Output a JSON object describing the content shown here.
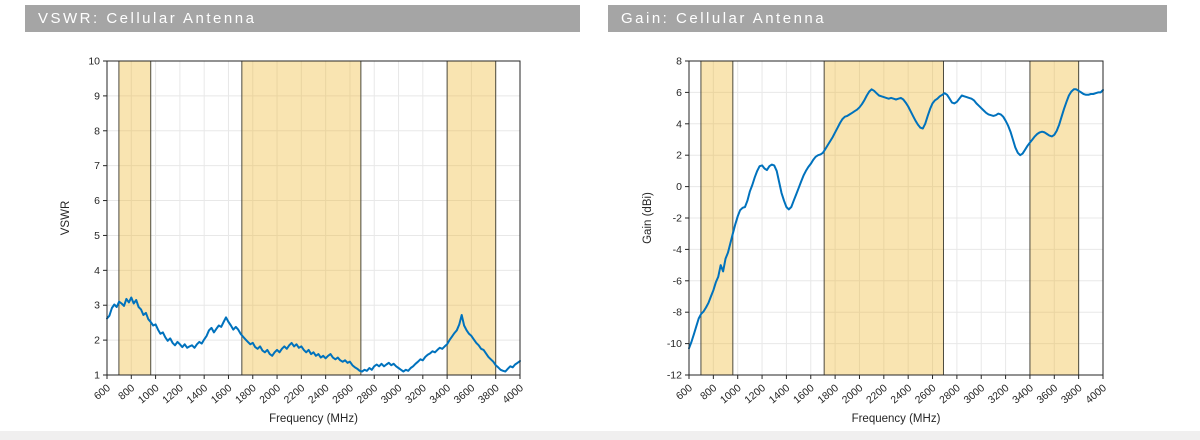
{
  "page": {
    "background": "#FFFFFF",
    "title_bar_color": "#A5A5A5",
    "title_text_color": "#FFFFFF",
    "bottom_strip_color": "#F0EFEF"
  },
  "chart_data": [
    {
      "type": "line",
      "title": "VSWR: Cellular Antenna",
      "xlabel": "Frequency (MHz)",
      "ylabel": "VSWR",
      "xlim": [
        600,
        4000
      ],
      "ylim": [
        1,
        10
      ],
      "xticks": [
        600,
        800,
        1000,
        1200,
        1400,
        1600,
        1800,
        2000,
        2200,
        2400,
        2600,
        2800,
        3000,
        3200,
        3400,
        3600,
        3800,
        4000
      ],
      "yticks": [
        1,
        2,
        3,
        4,
        5,
        6,
        7,
        8,
        9,
        10
      ],
      "grid": true,
      "legend": "none",
      "bands_mhz": [
        [
          698,
          960
        ],
        [
          1710,
          2690
        ],
        [
          3400,
          3800
        ]
      ],
      "x_start_mhz": 600,
      "x_step_mhz": 20,
      "x_end_mhz": 4000,
      "values": [
        2.62,
        2.7,
        2.92,
        3.02,
        2.95,
        3.1,
        3.05,
        2.98,
        3.18,
        3.08,
        3.22,
        3.05,
        3.15,
        2.95,
        2.88,
        2.72,
        2.78,
        2.6,
        2.52,
        2.42,
        2.45,
        2.3,
        2.18,
        2.22,
        2.08,
        1.98,
        2.05,
        1.92,
        1.85,
        1.95,
        1.88,
        1.8,
        1.88,
        1.78,
        1.82,
        1.85,
        1.78,
        1.88,
        1.95,
        1.9,
        2.02,
        2.12,
        2.28,
        2.35,
        2.22,
        2.32,
        2.42,
        2.38,
        2.52,
        2.65,
        2.52,
        2.42,
        2.3,
        2.38,
        2.3,
        2.18,
        2.1,
        2.02,
        1.95,
        1.88,
        1.92,
        1.8,
        1.75,
        1.82,
        1.7,
        1.65,
        1.72,
        1.6,
        1.55,
        1.65,
        1.72,
        1.65,
        1.75,
        1.82,
        1.75,
        1.85,
        1.92,
        1.82,
        1.88,
        1.78,
        1.82,
        1.72,
        1.65,
        1.72,
        1.6,
        1.65,
        1.55,
        1.6,
        1.5,
        1.55,
        1.48,
        1.55,
        1.6,
        1.5,
        1.45,
        1.5,
        1.42,
        1.38,
        1.42,
        1.35,
        1.38,
        1.28,
        1.22,
        1.18,
        1.12,
        1.1,
        1.15,
        1.12,
        1.2,
        1.15,
        1.25,
        1.3,
        1.25,
        1.32,
        1.25,
        1.3,
        1.35,
        1.28,
        1.32,
        1.25,
        1.2,
        1.15,
        1.1,
        1.15,
        1.12,
        1.2,
        1.25,
        1.32,
        1.38,
        1.45,
        1.42,
        1.52,
        1.58,
        1.62,
        1.68,
        1.65,
        1.72,
        1.78,
        1.75,
        1.82,
        1.88,
        2.0,
        2.1,
        2.2,
        2.28,
        2.45,
        2.72,
        2.42,
        2.28,
        2.18,
        2.12,
        2.02,
        1.92,
        1.85,
        1.75,
        1.72,
        1.62,
        1.52,
        1.45,
        1.38,
        1.28,
        1.22,
        1.15,
        1.12,
        1.1,
        1.18,
        1.25,
        1.22,
        1.3,
        1.35,
        1.4
      ],
      "colors": {
        "line": "#0072BD",
        "band_fill": "#EDB120",
        "band_fill_opacity": 0.35,
        "band_edge": "#4C4A3F",
        "grid": "#E8E8E8",
        "axis": "#262626",
        "text": "#262626"
      }
    },
    {
      "type": "line",
      "title": "Gain: Cellular Antenna",
      "xlabel": "Frequency (MHz)",
      "ylabel": "Gain (dBi)",
      "xlim": [
        600,
        4000
      ],
      "ylim": [
        -12,
        8
      ],
      "xticks": [
        600,
        800,
        1000,
        1200,
        1400,
        1600,
        1800,
        2000,
        2200,
        2400,
        2600,
        2800,
        3000,
        3200,
        3400,
        3600,
        3800,
        4000
      ],
      "yticks": [
        -12,
        -10,
        -8,
        -6,
        -4,
        -2,
        0,
        2,
        4,
        6,
        8
      ],
      "grid": true,
      "legend": "none",
      "bands_mhz": [
        [
          698,
          960
        ],
        [
          1710,
          2690
        ],
        [
          3400,
          3800
        ]
      ],
      "x_start_mhz": 600,
      "x_step_mhz": 20,
      "x_end_mhz": 4000,
      "values": [
        -10.3,
        -9.9,
        -9.4,
        -8.9,
        -8.4,
        -8.1,
        -7.95,
        -7.7,
        -7.4,
        -7.0,
        -6.6,
        -6.1,
        -5.75,
        -5.0,
        -5.4,
        -4.6,
        -4.2,
        -3.6,
        -3.0,
        -2.4,
        -1.9,
        -1.5,
        -1.35,
        -1.3,
        -0.9,
        -0.3,
        0.1,
        0.6,
        1.0,
        1.3,
        1.35,
        1.15,
        1.05,
        1.3,
        1.4,
        1.35,
        1.0,
        0.3,
        -0.4,
        -0.9,
        -1.3,
        -1.45,
        -1.3,
        -0.9,
        -0.5,
        -0.1,
        0.3,
        0.7,
        1.0,
        1.25,
        1.45,
        1.7,
        1.9,
        2.0,
        2.05,
        2.15,
        2.4,
        2.65,
        2.9,
        3.15,
        3.45,
        3.75,
        4.05,
        4.3,
        4.45,
        4.5,
        4.6,
        4.7,
        4.8,
        4.9,
        5.05,
        5.25,
        5.5,
        5.8,
        6.05,
        6.2,
        6.1,
        5.95,
        5.8,
        5.75,
        5.7,
        5.65,
        5.6,
        5.65,
        5.6,
        5.55,
        5.6,
        5.65,
        5.55,
        5.35,
        5.1,
        4.8,
        4.5,
        4.2,
        3.95,
        3.75,
        3.7,
        4.0,
        4.5,
        4.95,
        5.3,
        5.5,
        5.6,
        5.75,
        5.85,
        5.95,
        5.85,
        5.6,
        5.35,
        5.3,
        5.4,
        5.6,
        5.8,
        5.75,
        5.7,
        5.65,
        5.6,
        5.5,
        5.3,
        5.15,
        5.0,
        4.85,
        4.7,
        4.6,
        4.55,
        4.5,
        4.55,
        4.65,
        4.6,
        4.45,
        4.2,
        3.9,
        3.5,
        3.0,
        2.5,
        2.15,
        2.0,
        2.1,
        2.35,
        2.6,
        2.8,
        3.0,
        3.2,
        3.35,
        3.45,
        3.5,
        3.45,
        3.35,
        3.25,
        3.2,
        3.3,
        3.55,
        3.95,
        4.45,
        4.95,
        5.4,
        5.8,
        6.05,
        6.2,
        6.2,
        6.1,
        6.0,
        5.9,
        5.85,
        5.85,
        5.9,
        5.9,
        5.95,
        6.0,
        6.0,
        6.15
      ],
      "colors": {
        "line": "#0072BD",
        "band_fill": "#EDB120",
        "band_fill_opacity": 0.35,
        "band_edge": "#4C4A3F",
        "grid": "#E8E8E8",
        "axis": "#262626",
        "text": "#262626"
      }
    }
  ]
}
